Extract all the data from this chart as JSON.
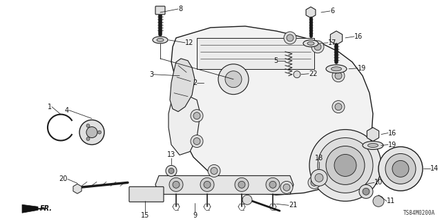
{
  "bg_color": "#ffffff",
  "diagram_code": "TS84M0200A",
  "fr_label": "FR.",
  "line_color": "#1a1a1a",
  "label_color": "#111111",
  "font_size": 7.0,
  "body_fill": "#f0f0f0",
  "part_fill": "#e0e0e0",
  "dark_fill": "#888888",
  "leader_lw": 0.55
}
